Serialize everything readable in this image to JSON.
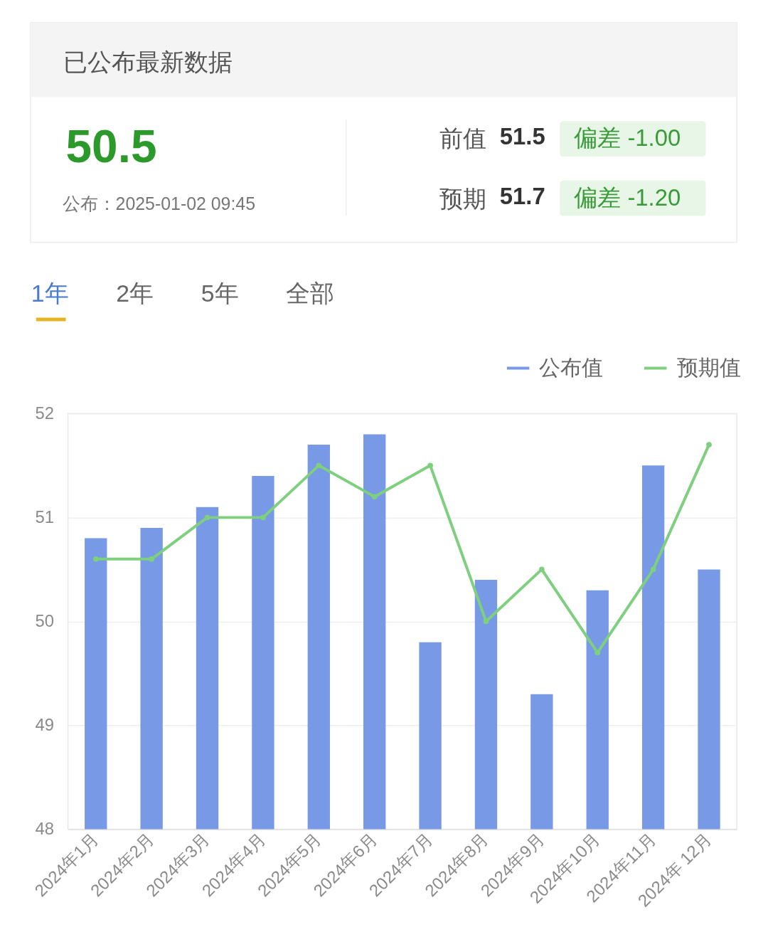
{
  "chart_data": [
    {
      "type": "other",
      "title": "已公布最新数据",
      "annotations": [
        "50.5",
        "公布：2025-01-02 09:45",
        "前值",
        "51.5",
        "偏差 -1.00",
        "预期",
        "51.7",
        "偏差 -1.20"
      ]
    },
    {
      "type": "bar",
      "categories": [
        "2024年1月",
        "2024年2月",
        "2024年3月",
        "2024年4月",
        "2024年5月",
        "2024年6月",
        "2024年7月",
        "2024年8月",
        "2024年9月",
        "2024年10月",
        "2024年11月",
        "2024年 12月"
      ],
      "series": [
        {
          "name": "公布值",
          "type": "bar",
          "color": "#7799e6",
          "values": [
            50.8,
            50.9,
            51.1,
            51.4,
            51.7,
            51.8,
            49.8,
            50.4,
            49.3,
            50.3,
            51.5,
            50.5
          ]
        },
        {
          "name": "预期值",
          "type": "line",
          "color": "#7ecf7e",
          "marker": "circle",
          "line_style": "solid",
          "values": [
            50.6,
            50.6,
            51.0,
            51.0,
            51.5,
            51.2,
            51.5,
            50.0,
            50.5,
            49.7,
            50.5,
            51.7
          ]
        }
      ],
      "ylim": [
        48,
        52
      ],
      "yticks": [
        48,
        49,
        50,
        51,
        52
      ],
      "grid": "y",
      "legend": "top right",
      "annotations": [
        "1年",
        "2年",
        "5年",
        "全部"
      ]
    }
  ]
}
